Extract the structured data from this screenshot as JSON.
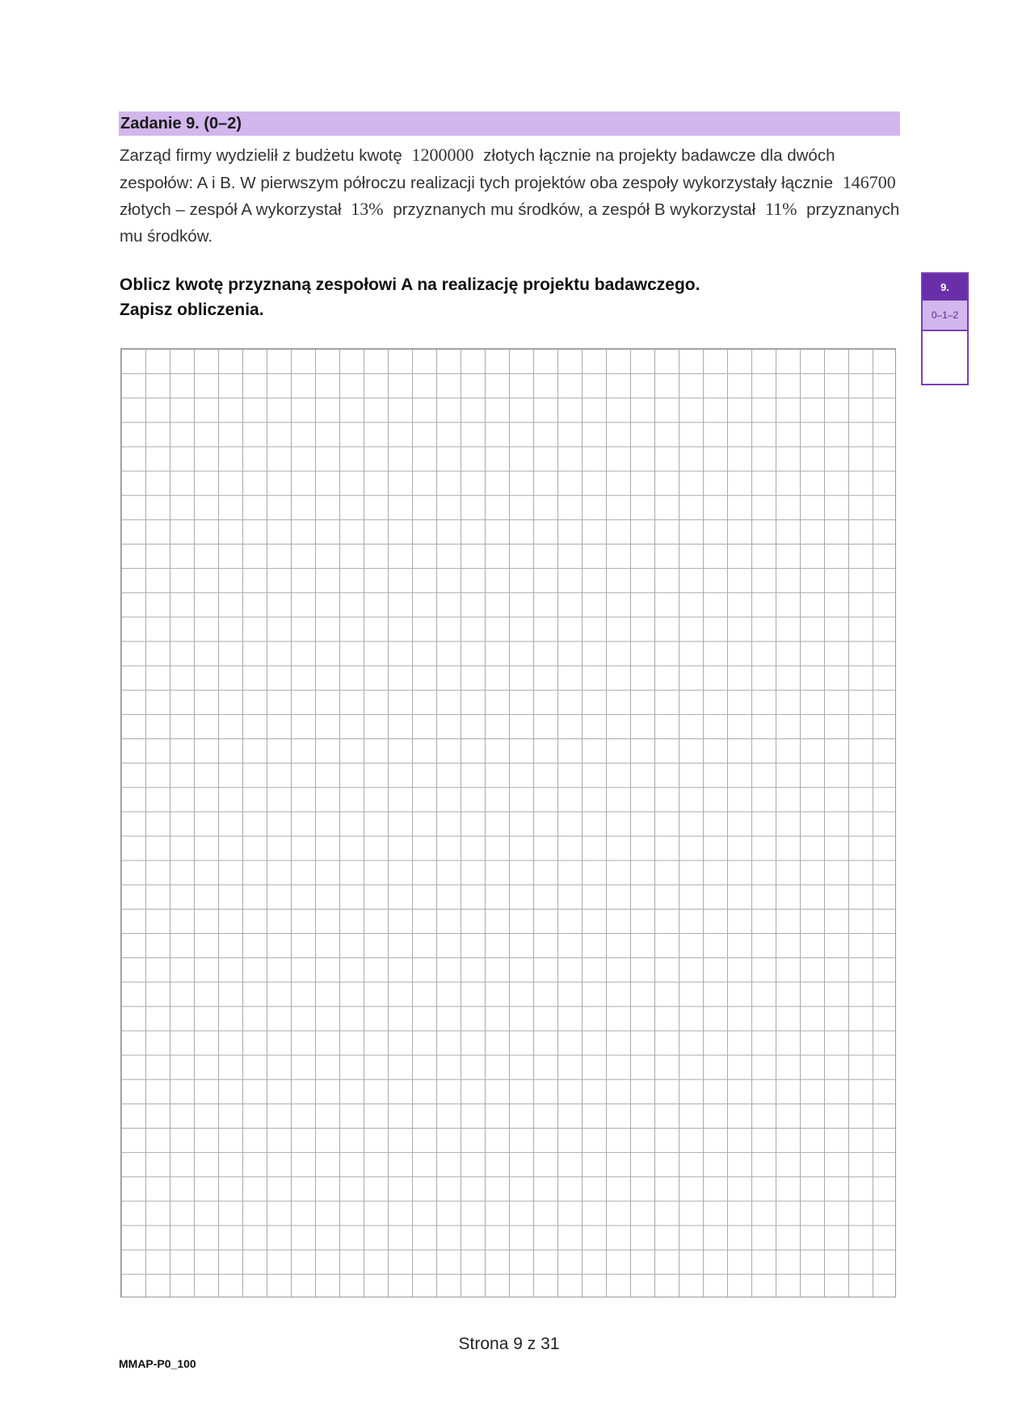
{
  "task": {
    "title": "Zadanie 9. (0–2)",
    "text_parts": [
      "Zarząd firmy wydzielił z budżetu kwotę",
      "1200000",
      "złotych łącznie na projekty badawcze dla dwóch zespołów: A i B. W pierwszym półroczu realizacji tych projektów oba zespoły wykorzystały łącznie",
      "146700",
      "złotych – zespół A wykorzystał",
      "13%",
      "przyznanych mu środków, a zespół B wykorzystał",
      "11%",
      "przyznanych mu środków."
    ],
    "command_line1": "Oblicz kwotę przyznaną zespołowi A na realizację projektu badawczego.",
    "command_line2": "Zapisz obliczenia."
  },
  "score_box": {
    "number": "9.",
    "points": "0–1–2"
  },
  "footer": {
    "page": "Strona 9 z 31",
    "code": "MMAP-P0_100"
  },
  "colors": {
    "header": "#d2b6ec",
    "accent": "#6a2fa8"
  }
}
